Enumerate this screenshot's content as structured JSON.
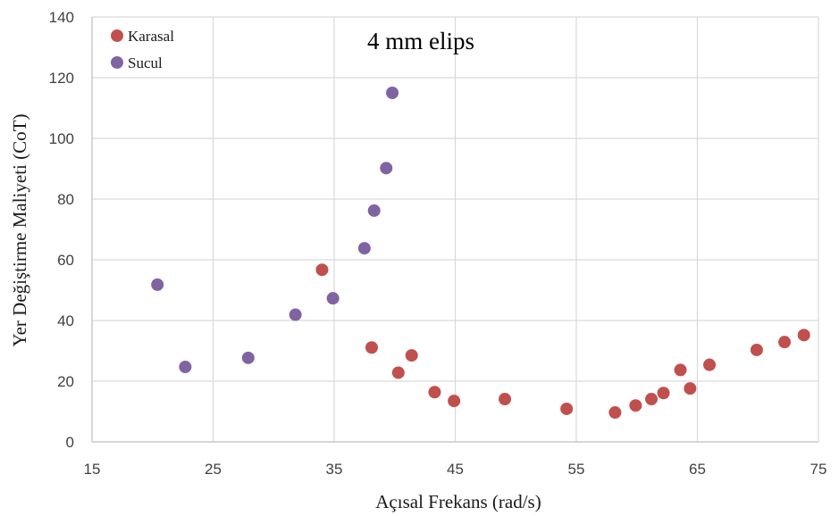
{
  "chart_data": {
    "type": "scatter",
    "xlabel": "Açısal Frekans (rad/s)",
    "ylabel": "Yer Değiştirme Maliyeti (CoT)",
    "annotation": "4 mm elips",
    "xlim": [
      15,
      75
    ],
    "ylim": [
      0,
      140
    ],
    "xticks": [
      "15",
      "25",
      "35",
      "45",
      "55",
      "65",
      "75"
    ],
    "yticks": [
      "0",
      "20",
      "40",
      "60",
      "80",
      "100",
      "120",
      "140"
    ],
    "xtick_values": [
      15,
      25,
      35,
      45,
      55,
      65,
      75
    ],
    "ytick_values": [
      0,
      20,
      40,
      60,
      80,
      100,
      120,
      140
    ],
    "grid": true,
    "legend_position": "top-left",
    "series": [
      {
        "name": "Karasal",
        "color": "#C0504D",
        "points": [
          {
            "x": 34.0,
            "y": 56.7
          },
          {
            "x": 38.1,
            "y": 31.1
          },
          {
            "x": 40.3,
            "y": 22.8
          },
          {
            "x": 41.4,
            "y": 28.5
          },
          {
            "x": 43.3,
            "y": 16.4
          },
          {
            "x": 44.9,
            "y": 13.5
          },
          {
            "x": 49.1,
            "y": 14.1
          },
          {
            "x": 54.2,
            "y": 10.9
          },
          {
            "x": 58.2,
            "y": 9.7
          },
          {
            "x": 59.9,
            "y": 12.0
          },
          {
            "x": 61.2,
            "y": 14.1
          },
          {
            "x": 62.2,
            "y": 16.1
          },
          {
            "x": 63.6,
            "y": 23.7
          },
          {
            "x": 64.4,
            "y": 17.6
          },
          {
            "x": 66.0,
            "y": 25.4
          },
          {
            "x": 69.9,
            "y": 30.3
          },
          {
            "x": 72.2,
            "y": 32.9
          },
          {
            "x": 73.8,
            "y": 35.2
          }
        ]
      },
      {
        "name": "Sucul",
        "color": "#8064A2",
        "points": [
          {
            "x": 20.4,
            "y": 51.8
          },
          {
            "x": 22.7,
            "y": 24.7
          },
          {
            "x": 27.9,
            "y": 27.7
          },
          {
            "x": 31.8,
            "y": 41.9
          },
          {
            "x": 34.9,
            "y": 47.3
          },
          {
            "x": 37.5,
            "y": 63.8
          },
          {
            "x": 38.3,
            "y": 76.2
          },
          {
            "x": 39.3,
            "y": 90.2
          },
          {
            "x": 39.8,
            "y": 115.0
          }
        ]
      }
    ]
  }
}
